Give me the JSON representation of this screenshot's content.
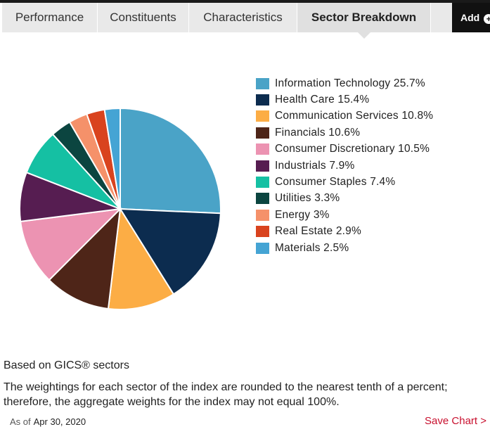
{
  "tabs": [
    {
      "label": "Performance"
    },
    {
      "label": "Constituents"
    },
    {
      "label": "Characteristics"
    },
    {
      "label": "Sector Breakdown",
      "active": true
    }
  ],
  "add_button": {
    "label": "Add",
    "icon": "plus-circle-icon"
  },
  "chart_data": {
    "type": "pie",
    "title": "",
    "legend_position": "right",
    "slices": [
      {
        "label": "Information Technology",
        "value": 25.7,
        "text": "Information Technology 25.7%",
        "color": "#4aa3c7"
      },
      {
        "label": "Health Care",
        "value": 15.4,
        "text": "Health Care 15.4%",
        "color": "#0c2c4f"
      },
      {
        "label": "Communication Services",
        "value": 10.8,
        "text": "Communication Services 10.8%",
        "color": "#fcad45"
      },
      {
        "label": "Financials",
        "value": 10.6,
        "text": "Financials 10.6%",
        "color": "#4e2518"
      },
      {
        "label": "Consumer Discretionary",
        "value": 10.5,
        "text": "Consumer Discretionary 10.5%",
        "color": "#ec93b2"
      },
      {
        "label": "Industrials",
        "value": 7.9,
        "text": "Industrials 7.9%",
        "color": "#561d51"
      },
      {
        "label": "Consumer Staples",
        "value": 7.4,
        "text": "Consumer Staples 7.4%",
        "color": "#15c0a3"
      },
      {
        "label": "Utilities",
        "value": 3.3,
        "text": "Utilities 3.3%",
        "color": "#0b4540"
      },
      {
        "label": "Energy",
        "value": 3,
        "text": "Energy 3%",
        "color": "#f5916a"
      },
      {
        "label": "Real Estate",
        "value": 2.9,
        "text": "Real Estate 2.9%",
        "color": "#d9431e"
      },
      {
        "label": "Materials",
        "value": 2.5,
        "text": "Materials 2.5%",
        "color": "#45a4d4"
      }
    ]
  },
  "footer": {
    "basis": "Based on GICS® sectors",
    "note": "The weightings for each sector of the index are rounded to the nearest tenth of a percent; therefore, the aggregate weights for the index may not equal 100%.",
    "as_of_label": "As of",
    "as_of_date": "Apr 30, 2020",
    "save_chart": "Save Chart >",
    "accent_color": "#c8102e"
  }
}
